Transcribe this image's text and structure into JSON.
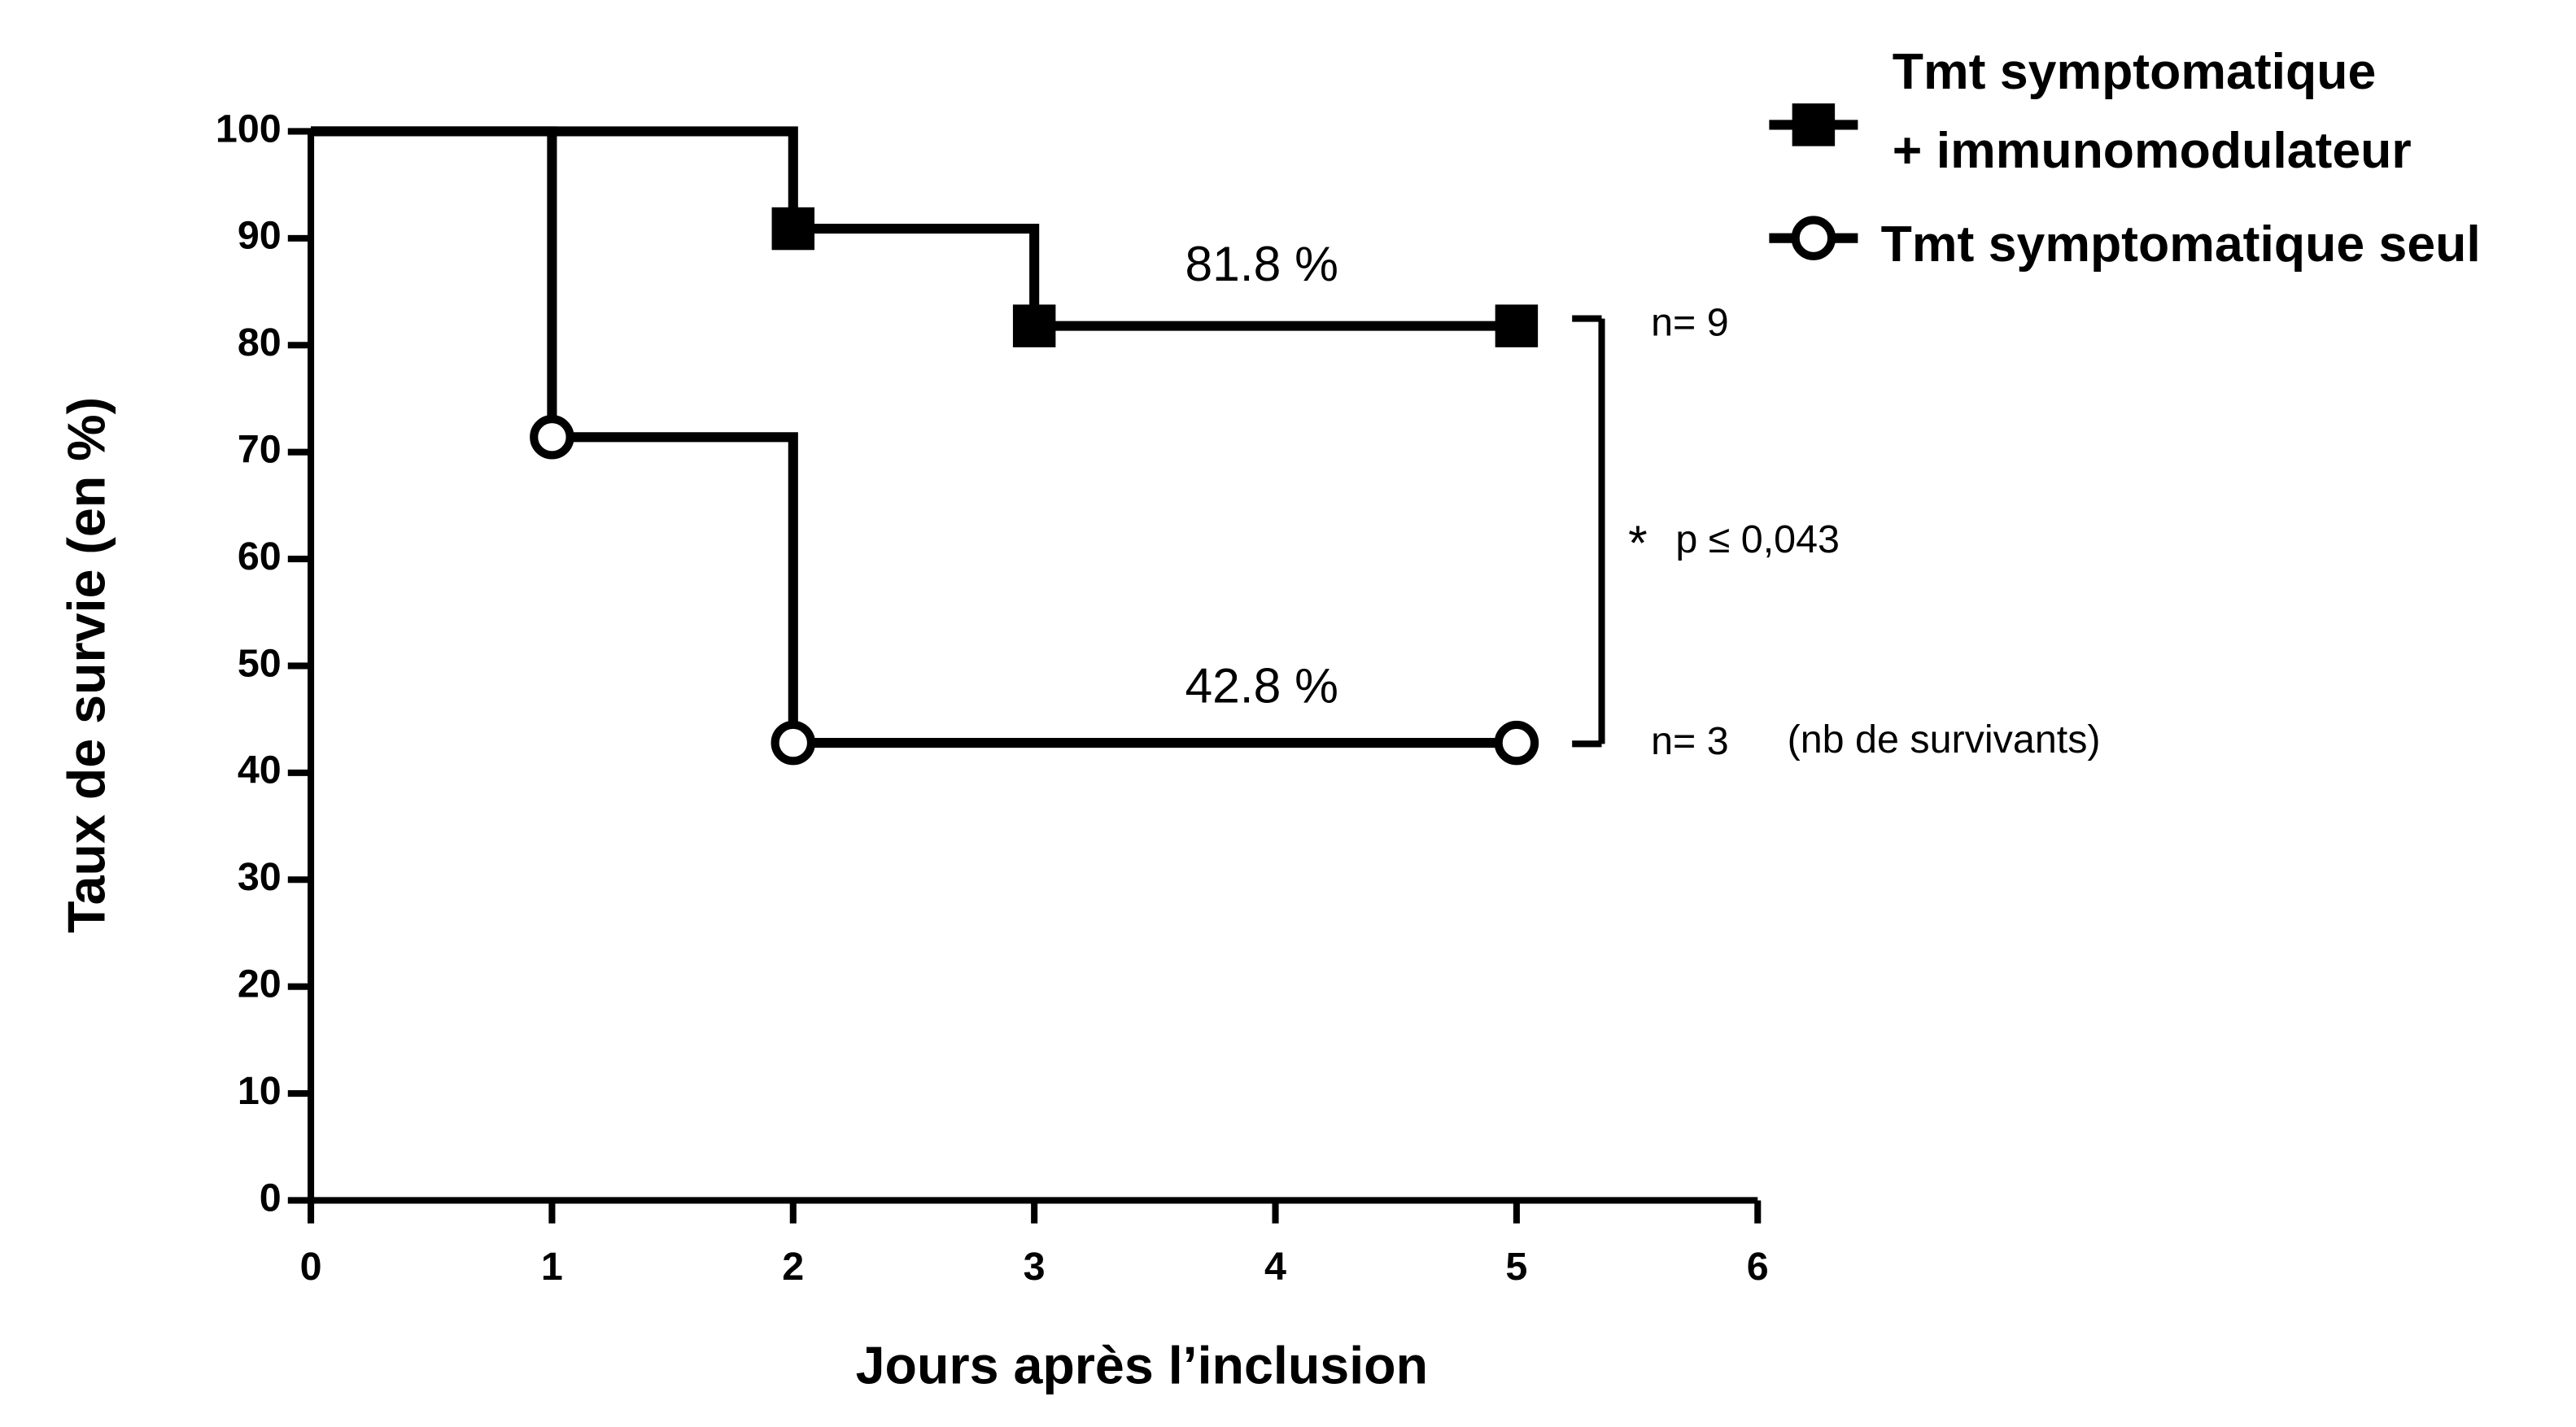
{
  "chart_data": {
    "type": "line",
    "step": true,
    "x_label": "Jours après l’inclusion",
    "y_label": "Taux de survie (en %)",
    "series": [
      {
        "name": "Tmt symptomatique\n+ immunomodulateur",
        "color": "#000000",
        "marker": "square",
        "x": [
          0,
          2,
          3,
          5
        ],
        "values": [
          100,
          90.9,
          81.8,
          81.8
        ]
      },
      {
        "name": "Tmt symptomatique seul",
        "color": "#000000",
        "marker": "circle",
        "x": [
          0,
          1,
          2,
          5
        ],
        "values": [
          100,
          71.4,
          42.8,
          42.8
        ]
      }
    ],
    "xlim": [
      0,
      6
    ],
    "xticks": [
      0,
      1,
      2,
      3,
      4,
      5,
      6
    ],
    "ylim": [
      0,
      100
    ],
    "yticks": [
      0,
      10,
      20,
      30,
      40,
      50,
      60,
      70,
      80,
      90,
      100
    ],
    "grid": false,
    "legend": "top-right",
    "annotations": [
      "81.8 %",
      "42.8 %",
      "n= 9",
      "n= 3",
      "(nb de survivants)",
      "*",
      "p ≤ 0,043"
    ]
  }
}
